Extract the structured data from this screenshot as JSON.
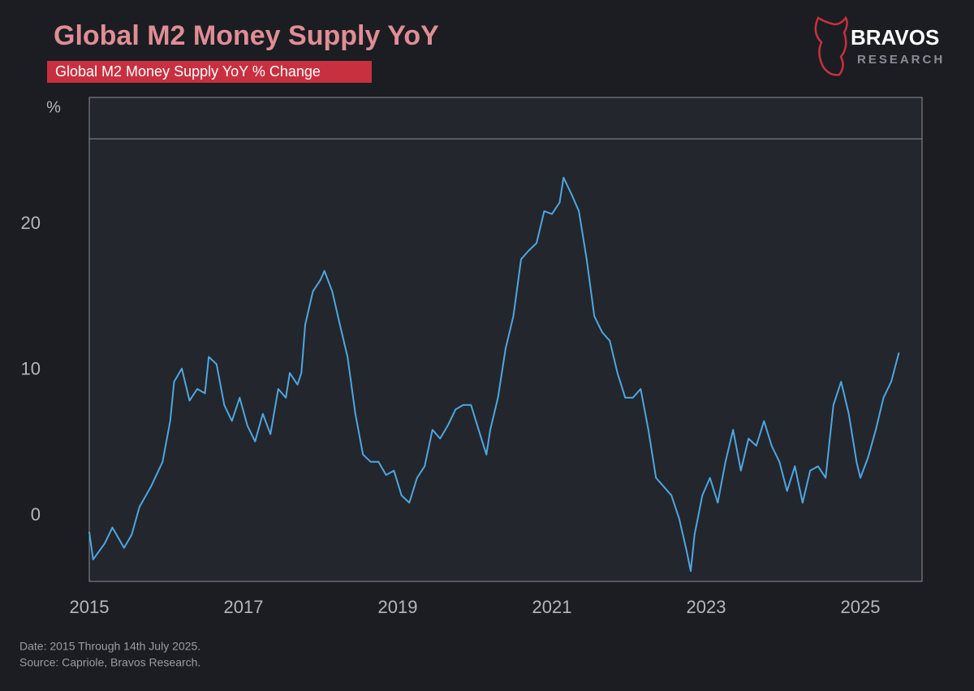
{
  "logo": {
    "name": "BRAVOS",
    "tagline": "RESEARCH"
  },
  "chart_data": {
    "type": "line",
    "title": "Global M2 Money Supply YoY",
    "subtitle": "Global M2 Money Supply YoY % Change",
    "y_label": "%",
    "notes": [
      "Date: 2015 Through 14th July 2025.",
      "Source: Capriole, Bravos Research."
    ],
    "xlim": [
      2015,
      2025.8
    ],
    "xticks": [
      2015,
      2017,
      2019,
      2021,
      2023,
      2025
    ],
    "ylim": [
      -4.5,
      28.7
    ],
    "yticks": [
      0,
      10,
      20
    ],
    "grid": false,
    "series": [
      {
        "color": "#4ea6e2",
        "x": [
          2015.0,
          2015.05,
          2015.2,
          2015.3,
          2015.45,
          2015.55,
          2015.65,
          2015.8,
          2015.95,
          2016.05,
          2016.1,
          2016.2,
          2016.3,
          2016.4,
          2016.5,
          2016.55,
          2016.65,
          2016.75,
          2016.85,
          2016.95,
          2017.05,
          2017.15,
          2017.25,
          2017.35,
          2017.45,
          2017.55,
          2017.6,
          2017.7,
          2017.75,
          2017.8,
          2017.9,
          2018.0,
          2018.05,
          2018.15,
          2018.25,
          2018.35,
          2018.45,
          2018.55,
          2018.65,
          2018.75,
          2018.85,
          2018.95,
          2019.05,
          2019.15,
          2019.25,
          2019.35,
          2019.45,
          2019.55,
          2019.65,
          2019.75,
          2019.85,
          2019.95,
          2020.05,
          2020.15,
          2020.2,
          2020.3,
          2020.4,
          2020.5,
          2020.6,
          2020.7,
          2020.8,
          2020.9,
          2021.0,
          2021.1,
          2021.15,
          2021.25,
          2021.35,
          2021.45,
          2021.55,
          2021.65,
          2021.75,
          2021.85,
          2021.95,
          2022.05,
          2022.15,
          2022.25,
          2022.35,
          2022.45,
          2022.55,
          2022.65,
          2022.75,
          2022.8,
          2022.85,
          2022.95,
          2023.05,
          2023.15,
          2023.25,
          2023.35,
          2023.45,
          2023.55,
          2023.65,
          2023.75,
          2023.85,
          2023.95,
          2024.05,
          2024.15,
          2024.25,
          2024.35,
          2024.45,
          2024.55,
          2024.65,
          2024.75,
          2024.85,
          2024.95,
          2025.0,
          2025.1,
          2025.2,
          2025.3,
          2025.4,
          2025.5
        ],
        "values": [
          -1.1,
          -3.0,
          -1.9,
          -0.8,
          -2.2,
          -1.3,
          0.6,
          2.0,
          3.7,
          6.5,
          9.2,
          10.1,
          7.9,
          8.7,
          8.4,
          10.9,
          10.4,
          7.6,
          6.5,
          8.1,
          6.2,
          5.1,
          7.0,
          5.6,
          8.7,
          8.1,
          9.8,
          9.0,
          9.8,
          13.1,
          15.4,
          16.2,
          16.8,
          15.4,
          13.1,
          10.9,
          7.0,
          4.2,
          3.7,
          3.7,
          2.8,
          3.1,
          1.4,
          0.9,
          2.6,
          3.4,
          5.9,
          5.3,
          6.2,
          7.3,
          7.6,
          7.6,
          5.9,
          4.2,
          5.9,
          8.1,
          11.5,
          13.7,
          17.6,
          18.2,
          18.7,
          20.9,
          20.7,
          21.5,
          23.2,
          22.1,
          20.9,
          17.6,
          13.7,
          12.6,
          12.0,
          9.8,
          8.1,
          8.1,
          8.7,
          5.9,
          2.6,
          2.0,
          1.4,
          -0.2,
          -2.5,
          -3.8,
          -1.3,
          1.4,
          2.6,
          0.9,
          3.7,
          5.9,
          3.1,
          5.3,
          4.8,
          6.5,
          4.8,
          3.7,
          1.7,
          3.4,
          0.9,
          3.1,
          3.4,
          2.6,
          7.6,
          9.2,
          7.0,
          3.7,
          2.6,
          4.0,
          5.9,
          8.1,
          9.2,
          11.2
        ]
      }
    ]
  }
}
